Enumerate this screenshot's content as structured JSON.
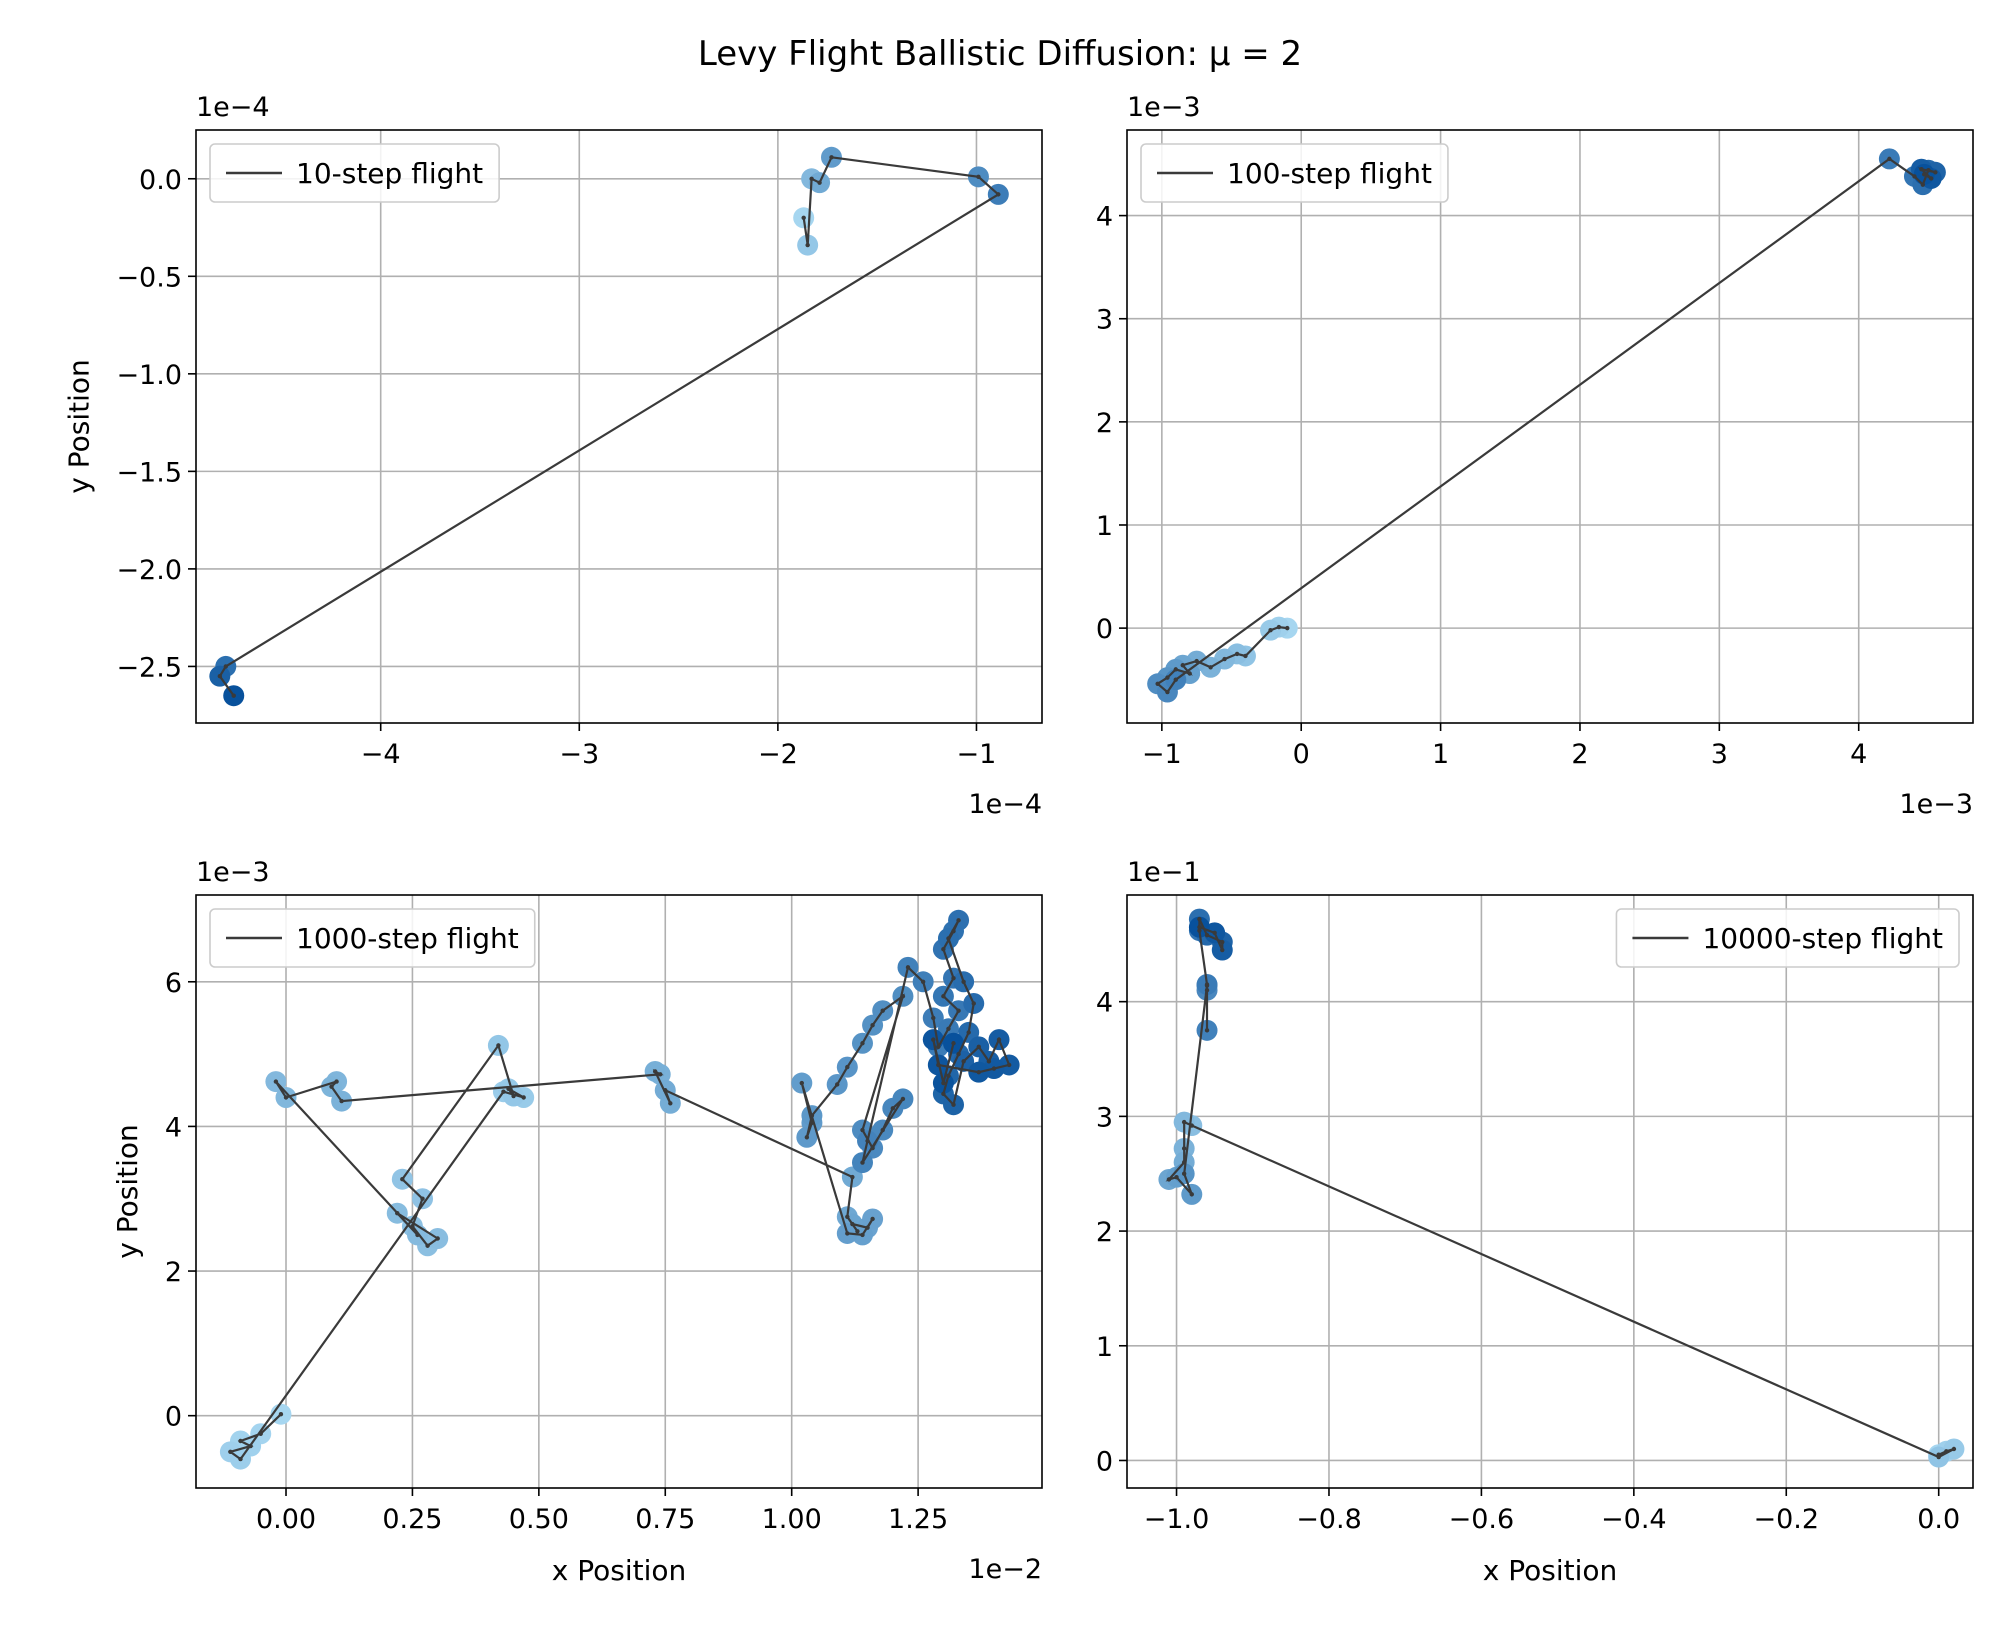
{
  "figure": {
    "title": "Levy Flight Ballistic Diffusion: μ = 2"
  },
  "colors": {
    "line": "#3a3a3a",
    "point_start": "#a6d6f0",
    "point_end": "#08519c",
    "grid": "#b0b0b0"
  },
  "chart_data": [
    {
      "type": "scatter",
      "legend": "10-step flight",
      "legend_position": "upper-left",
      "xlabel": "",
      "ylabel": "y Position",
      "x_offset_text": "1e−4",
      "y_offset_text": "1e−4",
      "xlim": [
        -4.93,
        -0.67
      ],
      "ylim": [
        -2.79,
        0.25
      ],
      "xticks": [
        -4,
        -3,
        -2,
        -1
      ],
      "xtick_labels": [
        "−4",
        "−3",
        "−2",
        "−1"
      ],
      "yticks": [
        0.0,
        -0.5,
        -1.0,
        -1.5,
        -2.0,
        -2.5
      ],
      "ytick_labels": [
        "0.0",
        "−0.5",
        "−1.0",
        "−1.5",
        "−2.0",
        "−2.5"
      ],
      "grid": true,
      "points": [
        [
          -1.87,
          -0.2
        ],
        [
          -1.85,
          -0.34
        ],
        [
          -1.83,
          0.0
        ],
        [
          -1.79,
          -0.02
        ],
        [
          -1.73,
          0.11
        ],
        [
          -0.99,
          0.01
        ],
        [
          -0.89,
          -0.08
        ],
        [
          -4.78,
          -2.5
        ],
        [
          -4.81,
          -2.55
        ],
        [
          -4.74,
          -2.65
        ]
      ]
    },
    {
      "type": "scatter",
      "legend": "100-step flight",
      "legend_position": "upper-left",
      "xlabel": "",
      "ylabel": "",
      "x_offset_text": "1e−3",
      "y_offset_text": "1e−3",
      "xlim": [
        -1.25,
        4.82
      ],
      "ylim": [
        -0.92,
        4.83
      ],
      "xticks": [
        -1,
        0,
        1,
        2,
        3,
        4
      ],
      "xtick_labels": [
        "−1",
        "0",
        "1",
        "2",
        "3",
        "4"
      ],
      "yticks": [
        0,
        1,
        2,
        3,
        4
      ],
      "ytick_labels": [
        "0",
        "1",
        "2",
        "3",
        "4"
      ],
      "grid": true,
      "points": [
        [
          -0.1,
          0.0
        ],
        [
          -0.16,
          0.01
        ],
        [
          -0.22,
          -0.02
        ],
        [
          -0.4,
          -0.27
        ],
        [
          -0.46,
          -0.25
        ],
        [
          -0.55,
          -0.3
        ],
        [
          -0.65,
          -0.38
        ],
        [
          -0.75,
          -0.32
        ],
        [
          -0.85,
          -0.36
        ],
        [
          -0.8,
          -0.44
        ],
        [
          -0.9,
          -0.4
        ],
        [
          -0.96,
          -0.48
        ],
        [
          -1.03,
          -0.54
        ],
        [
          -0.96,
          -0.62
        ],
        [
          -0.9,
          -0.5
        ],
        [
          4.22,
          4.55
        ],
        [
          4.4,
          4.38
        ],
        [
          4.46,
          4.3
        ],
        [
          4.5,
          4.44
        ],
        [
          4.55,
          4.42
        ],
        [
          4.45,
          4.45
        ],
        [
          4.52,
          4.36
        ],
        [
          4.47,
          4.4
        ]
      ]
    },
    {
      "type": "scatter",
      "legend": "1000-step flight",
      "legend_position": "upper-left",
      "xlabel": "x Position",
      "ylabel": "y Position",
      "x_offset_text": "1e−2",
      "y_offset_text": "1e−3",
      "xlim": [
        -0.178,
        1.495
      ],
      "ylim": [
        -1.0,
        7.2
      ],
      "xticks": [
        0.0,
        0.25,
        0.5,
        0.75,
        1.0,
        1.25
      ],
      "xtick_labels": [
        "0.00",
        "0.25",
        "0.50",
        "0.75",
        "1.00",
        "1.25"
      ],
      "yticks": [
        0,
        2,
        4,
        6
      ],
      "ytick_labels": [
        "0",
        "2",
        "4",
        "6"
      ],
      "grid": true,
      "points": [
        [
          -0.01,
          0.02
        ],
        [
          -0.05,
          -0.25
        ],
        [
          -0.09,
          -0.35
        ],
        [
          -0.07,
          -0.42
        ],
        [
          -0.11,
          -0.5
        ],
        [
          -0.09,
          -0.6
        ],
        [
          0.43,
          4.48
        ],
        [
          0.47,
          4.4
        ],
        [
          0.44,
          4.52
        ],
        [
          0.45,
          4.42
        ],
        [
          0.42,
          5.12
        ],
        [
          0.23,
          3.27
        ],
        [
          0.27,
          3.0
        ],
        [
          0.25,
          2.62
        ],
        [
          0.28,
          2.35
        ],
        [
          0.3,
          2.45
        ],
        [
          0.22,
          2.8
        ],
        [
          0.26,
          2.5
        ],
        [
          -0.02,
          4.62
        ],
        [
          0.0,
          4.4
        ],
        [
          0.1,
          4.62
        ],
        [
          0.09,
          4.55
        ],
        [
          0.11,
          4.35
        ],
        [
          0.74,
          4.72
        ],
        [
          0.73,
          4.76
        ],
        [
          0.76,
          4.32
        ],
        [
          0.75,
          4.5
        ],
        [
          1.12,
          3.3
        ],
        [
          1.11,
          2.75
        ],
        [
          1.13,
          2.55
        ],
        [
          1.12,
          2.65
        ],
        [
          1.15,
          2.6
        ],
        [
          1.16,
          2.72
        ],
        [
          1.14,
          2.5
        ],
        [
          1.11,
          2.52
        ],
        [
          1.02,
          4.6
        ],
        [
          1.04,
          4.05
        ],
        [
          1.03,
          3.85
        ],
        [
          1.04,
          4.15
        ],
        [
          1.09,
          4.58
        ],
        [
          1.11,
          4.82
        ],
        [
          1.14,
          5.15
        ],
        [
          1.16,
          5.4
        ],
        [
          1.18,
          5.6
        ],
        [
          1.22,
          5.8
        ],
        [
          1.14,
          3.95
        ],
        [
          1.16,
          3.7
        ],
        [
          1.18,
          3.95
        ],
        [
          1.2,
          4.25
        ],
        [
          1.22,
          4.38
        ],
        [
          1.14,
          3.5
        ],
        [
          1.15,
          3.8
        ],
        [
          1.23,
          6.2
        ],
        [
          1.26,
          6.0
        ],
        [
          1.28,
          5.5
        ],
        [
          1.29,
          5.1
        ],
        [
          1.31,
          5.35
        ],
        [
          1.33,
          5.6
        ],
        [
          1.3,
          5.8
        ],
        [
          1.32,
          6.05
        ],
        [
          1.3,
          6.45
        ],
        [
          1.32,
          6.7
        ],
        [
          1.33,
          6.85
        ],
        [
          1.31,
          6.6
        ],
        [
          1.34,
          6.0
        ],
        [
          1.36,
          5.7
        ],
        [
          1.35,
          5.3
        ],
        [
          1.33,
          5.0
        ],
        [
          1.31,
          4.7
        ],
        [
          1.3,
          4.45
        ],
        [
          1.32,
          4.3
        ],
        [
          1.34,
          4.9
        ],
        [
          1.37,
          5.1
        ],
        [
          1.39,
          4.9
        ],
        [
          1.41,
          5.2
        ],
        [
          1.43,
          4.85
        ],
        [
          1.4,
          4.8
        ],
        [
          1.37,
          4.75
        ],
        [
          1.29,
          4.85
        ],
        [
          1.28,
          5.2
        ],
        [
          1.3,
          4.6
        ],
        [
          1.32,
          5.15
        ]
      ]
    },
    {
      "type": "scatter",
      "legend": "10000-step flight",
      "legend_position": "upper-right",
      "xlabel": "x Position",
      "ylabel": "",
      "x_offset_text": "",
      "y_offset_text": "1e−1",
      "xlim": [
        -1.065,
        0.045
      ],
      "ylim": [
        -0.24,
        4.93
      ],
      "xticks": [
        -1.0,
        -0.8,
        -0.6,
        -0.4,
        -0.2,
        0.0
      ],
      "xtick_labels": [
        "−1.0",
        "−0.8",
        "−0.6",
        "−0.4",
        "−0.2",
        "0.0"
      ],
      "yticks": [
        0,
        1,
        2,
        3,
        4
      ],
      "ytick_labels": [
        "0",
        "1",
        "2",
        "3",
        "4"
      ],
      "grid": true,
      "points": [
        [
          0.0,
          0.05
        ],
        [
          0.01,
          0.08
        ],
        [
          0.02,
          0.1
        ],
        [
          0.0,
          0.03
        ],
        [
          -0.98,
          2.92
        ],
        [
          -0.99,
          2.95
        ],
        [
          -0.99,
          2.72
        ],
        [
          -0.99,
          2.6
        ],
        [
          -1.01,
          2.45
        ],
        [
          -1.0,
          2.47
        ],
        [
          -0.98,
          2.32
        ],
        [
          -0.99,
          2.5
        ],
        [
          -0.96,
          4.14
        ],
        [
          -0.96,
          4.1
        ],
        [
          -0.96,
          3.75
        ],
        [
          -0.96,
          4.15
        ],
        [
          -0.97,
          4.62
        ],
        [
          -0.97,
          4.72
        ],
        [
          -0.96,
          4.58
        ],
        [
          -0.94,
          4.52
        ],
        [
          -0.94,
          4.45
        ],
        [
          -0.95,
          4.6
        ],
        [
          -0.97,
          4.65
        ]
      ]
    }
  ]
}
